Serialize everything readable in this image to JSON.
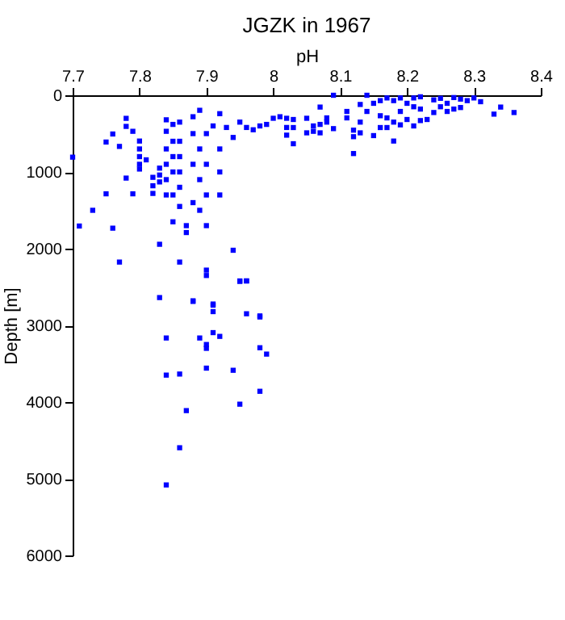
{
  "chart_data": {
    "type": "scatter",
    "title": "JGZK in 1967",
    "xlabel": "pH",
    "ylabel": "Depth [m]",
    "xlim": [
      7.7,
      8.4
    ],
    "xticks": [
      7.7,
      7.8,
      7.9,
      8,
      8.1,
      8.2,
      8.3,
      8.4
    ],
    "ylim": [
      6000,
      0
    ],
    "yticks": [
      0,
      1000,
      2000,
      3000,
      4000,
      5000,
      6000
    ],
    "grid": false,
    "marker": "square",
    "series": [
      {
        "color": "#0000ff",
        "x": [
          7.7,
          7.71,
          7.73,
          7.75,
          7.76,
          7.77,
          7.75,
          7.76,
          7.77,
          7.78,
          7.78,
          7.79,
          7.78,
          7.79,
          7.8,
          7.8,
          7.8,
          7.8,
          7.81,
          7.8,
          7.82,
          7.82,
          7.82,
          7.83,
          7.83,
          7.83,
          7.83,
          7.84,
          7.84,
          7.84,
          7.84,
          7.84,
          7.84,
          7.85,
          7.85,
          7.85,
          7.85,
          7.85,
          7.85,
          7.86,
          7.86,
          7.86,
          7.86,
          7.86,
          7.86,
          7.86,
          7.87,
          7.87,
          7.88,
          7.89,
          7.88,
          7.88,
          7.88,
          7.88,
          7.89,
          7.89,
          7.89,
          7.9,
          7.9,
          7.9,
          7.9,
          7.9,
          7.91,
          7.91,
          7.92,
          7.92,
          7.92,
          7.92,
          7.93,
          7.94,
          7.94,
          7.95,
          7.96,
          7.98,
          7.95,
          7.96,
          7.97,
          7.98,
          7.99,
          8.0,
          8.01,
          8.02,
          8.02,
          8.02,
          7.9,
          7.95,
          7.96,
          7.83,
          7.88,
          7.91,
          7.91,
          7.96,
          7.98,
          7.84,
          7.89,
          7.91,
          7.92,
          7.9,
          7.9,
          7.98,
          7.99,
          7.84,
          7.86,
          7.9,
          7.94,
          7.98,
          7.95,
          7.87,
          7.86,
          7.84,
          8.03,
          8.03,
          8.03,
          8.05,
          8.05,
          8.06,
          8.06,
          8.07,
          8.07,
          8.07,
          8.08,
          8.08,
          8.09,
          8.09,
          8.11,
          8.11,
          8.12,
          8.12,
          8.12,
          8.13,
          8.13,
          8.13,
          8.14,
          8.14,
          8.15,
          8.15,
          8.16,
          8.16,
          8.16,
          8.17,
          8.17,
          8.17,
          8.18,
          8.18,
          8.18,
          8.19,
          8.19,
          8.19,
          8.2,
          8.2,
          8.21,
          8.21,
          8.21,
          8.22,
          8.22,
          8.22,
          8.23,
          8.24,
          8.24,
          8.25,
          8.25,
          8.26,
          8.26,
          8.27,
          8.27,
          8.28,
          8.28,
          8.29,
          8.3,
          8.31,
          8.33,
          8.34,
          8.36
        ],
        "values": [
          807,
          1705,
          1500,
          1285,
          1733,
          2175,
          610,
          505,
          667,
          301,
          406,
          470,
          1080,
          1285,
          597,
          700,
          800,
          900,
          842,
          962,
          1070,
          1180,
          1280,
          950,
          1040,
          1130,
          1943,
          320,
          470,
          700,
          900,
          1100,
          1300,
          380,
          600,
          800,
          1000,
          1300,
          1650,
          350,
          600,
          800,
          1000,
          1200,
          1450,
          2175,
          1700,
          1790,
          280,
          196,
          500,
          900,
          1400,
          2680,
          700,
          1100,
          1500,
          500,
          900,
          1300,
          1700,
          2280,
          400,
          2737,
          240,
          700,
          1000,
          1300,
          420,
          550,
          2021,
          2421,
          2421,
          2877,
          350,
          420,
          450,
          400,
          380,
          300,
          280,
          420,
          300,
          520,
          2350,
          2427,
          2421,
          2638,
          2688,
          2722,
          2821,
          2849,
          2891,
          3165,
          3165,
          3095,
          3144,
          3250,
          3300,
          3292,
          3375,
          3649,
          3635,
          3558,
          3586,
          3860,
          4028,
          4112,
          4596,
          5081,
          316,
          421,
          632,
          300,
          490,
          470,
          400,
          154,
          380,
          490,
          295,
          350,
          0,
          435,
          211,
          295,
          455,
          540,
          760,
          120,
          350,
          490,
          0,
          211,
          105,
          526,
          70,
          267,
          421,
          35,
          295,
          421,
          70,
          350,
          597,
          35,
          211,
          386,
          105,
          316,
          35,
          150,
          400,
          20,
          180,
          330,
          316,
          60,
          225,
          40,
          150,
          105,
          211,
          30,
          180,
          50,
          160,
          70,
          35,
          84,
          246,
          154,
          225
        ]
      }
    ]
  }
}
